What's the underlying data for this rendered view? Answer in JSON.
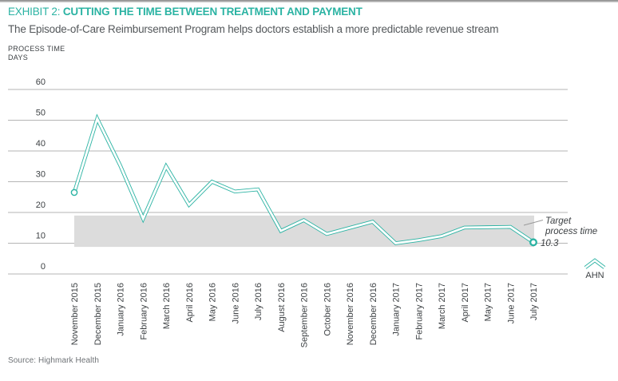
{
  "header": {
    "exhibit_label": "EXHIBIT 2:",
    "title": "CUTTING THE TIME BETWEEN TREATMENT AND PAYMENT",
    "subtitle": "The Episode-of-Care Reimbursement Program helps doctors establish a more predictable revenue stream"
  },
  "colors": {
    "accent_teal": "#2bb3a3",
    "band_gray": "#dcdcdc",
    "grid_gray": "#b5b5b5",
    "text_dark": "#3d4144",
    "leader_gray": "#9a9a9a",
    "annotation_dark": "#3a3e41",
    "source_gray": "#6e7276"
  },
  "chart_data": {
    "type": "line",
    "ylabel_line1": "PROCESS TIME",
    "ylabel_line2": "DAYS",
    "ylim": [
      0,
      60
    ],
    "y_ticks": [
      0,
      10,
      20,
      30,
      40,
      50,
      60
    ],
    "grid": true,
    "categories": [
      "November 2015",
      "December 2015",
      "January 2016",
      "February 2016",
      "March 2016",
      "April 2016",
      "May 2016",
      "June 2016",
      "July 2016",
      "August 2016",
      "September 2016",
      "October 2016",
      "November 2016",
      "December 2016",
      "January 2017",
      "February 2017",
      "March 2017",
      "April 2017",
      "May 2017",
      "June 2017",
      "July 2017"
    ],
    "series": [
      {
        "name": "AHN",
        "values": [
          26.5,
          50.5,
          35.3,
          18,
          35,
          22.5,
          30,
          26.8,
          27.5,
          14,
          17.5,
          13,
          15,
          17,
          10,
          11,
          12.3,
          15.1,
          15.2,
          15.3,
          10.3
        ]
      }
    ],
    "target_band": {
      "from": 8.8,
      "to": 19,
      "label_line1": "Target",
      "label_line2": "process time"
    },
    "end_label": "10.3",
    "legend": {
      "label": "AHN",
      "position": "bottom-right"
    }
  },
  "source": {
    "label": "Source: Highmark Health"
  }
}
